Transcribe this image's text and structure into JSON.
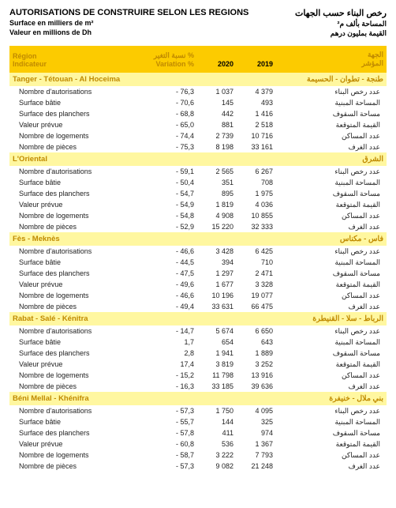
{
  "header": {
    "title_fr": "AUTORISATIONS DE CONSTRUIRE SELON LES REGIONS",
    "subtitle1_fr": "Surface en milliers de m²",
    "subtitle2_fr": "Valeur en millions de Dh",
    "title_ar": "رخص البناء حسب الجهات",
    "subtitle1_ar": "المساحة بألف م²",
    "subtitle2_ar": "القيمة بمليون درهم"
  },
  "columns": {
    "region_fr_l1": "Région",
    "region_fr_l2": "Indicateur",
    "variation_ar": "نسبة التغير %",
    "variation_fr": "Variation %",
    "y2020": "2020",
    "y2019": "2019",
    "region_ar_l1": "الجهة",
    "region_ar_l2": "المؤشر"
  },
  "indicators_fr": [
    "Nombre d'autorisations",
    "Surface bâtie",
    "Surface des planchers",
    "Valeur prévue",
    "Nombre de logements",
    "Nombre de pièces"
  ],
  "indicators_ar": [
    "عدد رخص البناء",
    "المساحة المبنية",
    "مساحة السقوف",
    "القيمة المتوقعة",
    "عدد المساكن",
    "عدد الغرف"
  ],
  "regions": [
    {
      "name_fr": "Tanger - Tétouan - Al Hoceima",
      "name_ar": "طنجة - تطوان - الحسيمة",
      "rows": [
        {
          "var": "- 76,3",
          "y20": "1 037",
          "y19": "4 379"
        },
        {
          "var": "- 70,6",
          "y20": "145",
          "y19": "493"
        },
        {
          "var": "- 68,8",
          "y20": "442",
          "y19": "1 416"
        },
        {
          "var": "- 65,0",
          "y20": "881",
          "y19": "2 518"
        },
        {
          "var": "- 74,4",
          "y20": "2 739",
          "y19": "10 716"
        },
        {
          "var": "- 75,3",
          "y20": "8 198",
          "y19": "33 161"
        }
      ]
    },
    {
      "name_fr": "L'Oriental",
      "name_ar": "الشرق",
      "rows": [
        {
          "var": "- 59,1",
          "y20": "2 565",
          "y19": "6 267"
        },
        {
          "var": "- 50,4",
          "y20": "351",
          "y19": "708"
        },
        {
          "var": "- 54,7",
          "y20": "895",
          "y19": "1 975"
        },
        {
          "var": "- 54,9",
          "y20": "1 819",
          "y19": "4 036"
        },
        {
          "var": "- 54,8",
          "y20": "4 908",
          "y19": "10 855"
        },
        {
          "var": "- 52,9",
          "y20": "15 220",
          "y19": "32 333"
        }
      ]
    },
    {
      "name_fr": "Fès - Meknès",
      "name_ar": "فاس - مكناس",
      "rows": [
        {
          "var": "- 46,6",
          "y20": "3 428",
          "y19": "6 425"
        },
        {
          "var": "- 44,5",
          "y20": "394",
          "y19": "710"
        },
        {
          "var": "- 47,5",
          "y20": "1 297",
          "y19": "2 471"
        },
        {
          "var": "- 49,6",
          "y20": "1 677",
          "y19": "3 328"
        },
        {
          "var": "- 46,6",
          "y20": "10 196",
          "y19": "19 077"
        },
        {
          "var": "- 49,4",
          "y20": "33 631",
          "y19": "66 475"
        }
      ]
    },
    {
      "name_fr": "Rabat - Salé - Kénitra",
      "name_ar": "الرباط - سلا - القنيطرة",
      "rows": [
        {
          "var": "- 14,7",
          "y20": "5 674",
          "y19": "6 650"
        },
        {
          "var": "1,7",
          "y20": "654",
          "y19": "643"
        },
        {
          "var": "2,8",
          "y20": "1 941",
          "y19": "1 889"
        },
        {
          "var": "17,4",
          "y20": "3 819",
          "y19": "3 252"
        },
        {
          "var": "- 15,2",
          "y20": "11 798",
          "y19": "13 916"
        },
        {
          "var": "- 16,3",
          "y20": "33 185",
          "y19": "39 636"
        }
      ]
    },
    {
      "name_fr": "Béni  Mellal - Khénifra",
      "name_ar": "بني ملال - خنيفرة",
      "rows": [
        {
          "var": "- 57,3",
          "y20": "1 750",
          "y19": "4 095"
        },
        {
          "var": "- 55,7",
          "y20": "144",
          "y19": "325"
        },
        {
          "var": "- 57,8",
          "y20": "411",
          "y19": "974"
        },
        {
          "var": "- 60,8",
          "y20": "536",
          "y19": "1 367"
        },
        {
          "var": "- 58,7",
          "y20": "3 222",
          "y19": "7 793"
        },
        {
          "var": "- 57,3",
          "y20": "9 082",
          "y19": "21 248"
        }
      ]
    }
  ]
}
